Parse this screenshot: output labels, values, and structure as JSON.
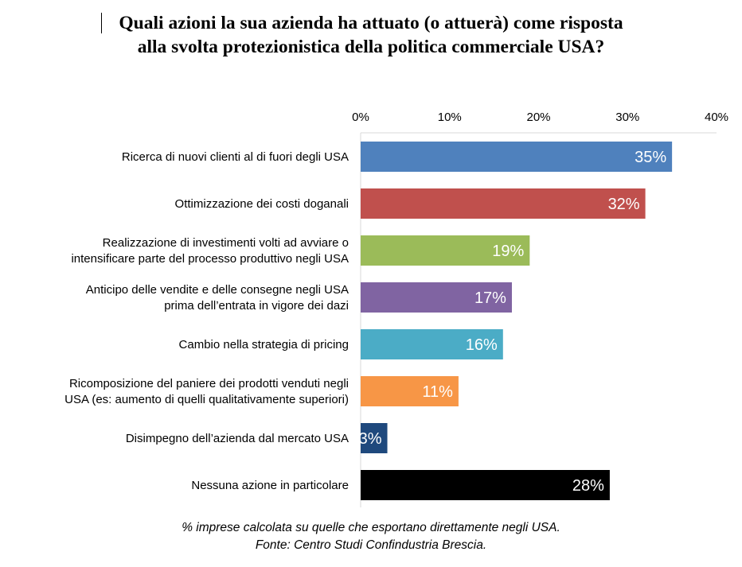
{
  "title": {
    "line1": "Quali azioni la sua azienda ha attuato (o attuerà) come risposta",
    "line2": "alla svolta protezionistica della politica commerciale USA?"
  },
  "footnote": {
    "line1": "% imprese calcolata su quelle che esportano direttamente negli USA.",
    "line2": "Fonte: Centro Studi Confindustria Brescia."
  },
  "chart_data": {
    "type": "bar",
    "orientation": "horizontal",
    "categories": [
      [
        "Ricerca di nuovi clienti al di fuori degli USA"
      ],
      [
        "Ottimizzazione dei costi doganali"
      ],
      [
        "Realizzazione di investimenti volti ad avviare o",
        "intensificare parte del processo produttivo negli USA"
      ],
      [
        "Anticipo delle vendite e delle consegne negli USA",
        "prima dell’entrata in vigore dei dazi"
      ],
      [
        "Cambio nella strategia di pricing"
      ],
      [
        "Ricomposizione del paniere dei prodotti venduti negli",
        "USA (es: aumento di quelli qualitativamente superiori)"
      ],
      [
        "Disimpegno dell’azienda dal mercato USA"
      ],
      [
        "Nessuna azione in particolare"
      ]
    ],
    "values": [
      35,
      32,
      19,
      17,
      16,
      11,
      3,
      28
    ],
    "data_labels": [
      "35%",
      "32%",
      "19%",
      "17%",
      "16%",
      "11%",
      "3%",
      "28%"
    ],
    "colors": [
      "#4f81bd",
      "#c0504d",
      "#9bbb59",
      "#8064a2",
      "#4bacc6",
      "#f79646",
      "#1f497d",
      "#000000"
    ],
    "xlim": [
      0,
      40
    ],
    "ticks": [
      0,
      10,
      20,
      30,
      40
    ],
    "tick_labels": [
      "0%",
      "10%",
      "20%",
      "30%",
      "40%"
    ],
    "axis_position": "top",
    "grid": false,
    "legend": false
  }
}
